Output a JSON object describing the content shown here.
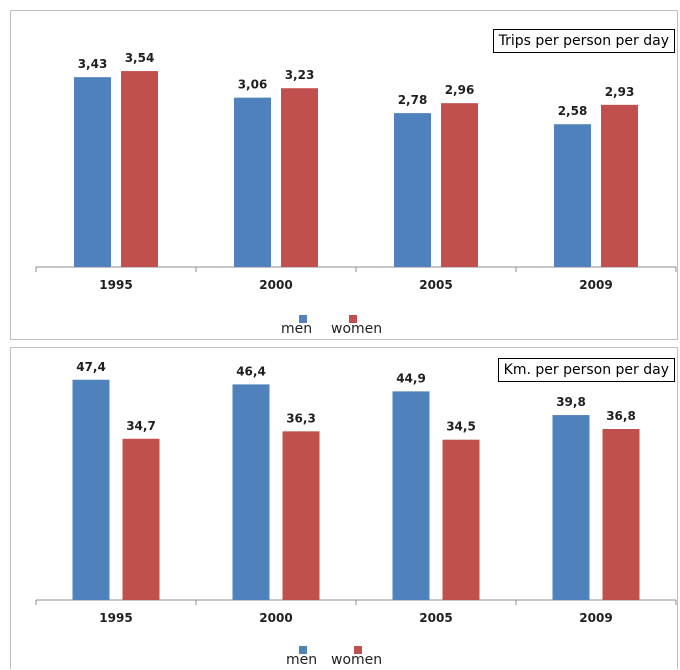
{
  "chart_data": [
    {
      "type": "bar",
      "title": "Trips per person per day",
      "categories": [
        "1995",
        "2000",
        "2005",
        "2009"
      ],
      "series": [
        {
          "name": "men",
          "values": [
            3.43,
            3.06,
            2.78,
            2.58
          ],
          "labels": [
            "3,43",
            "3,06",
            "2,78",
            "2,58"
          ],
          "color": "#4f81bd"
        },
        {
          "name": "women",
          "values": [
            3.54,
            3.23,
            2.96,
            2.93
          ],
          "labels": [
            "3,54",
            "3,23",
            "2,96",
            "2,93"
          ],
          "color": "#c0504d"
        }
      ],
      "ylim": [
        0,
        4.3
      ],
      "grid": false,
      "legend": "bottom"
    },
    {
      "type": "bar",
      "title": "Km. per person per day",
      "categories": [
        "1995",
        "2000",
        "2005",
        "2009"
      ],
      "series": [
        {
          "name": "men",
          "values": [
            47.4,
            46.4,
            44.9,
            39.8
          ],
          "labels": [
            "47,4",
            "46,4",
            "44,9",
            "39,8"
          ],
          "color": "#4f81bd"
        },
        {
          "name": "women",
          "values": [
            34.7,
            36.3,
            34.5,
            36.8
          ],
          "labels": [
            "34,7",
            "36,3",
            "34,5",
            "36,8"
          ],
          "color": "#c0504d"
        }
      ],
      "ylim": [
        0,
        49.5
      ],
      "grid": false,
      "legend": "bottom"
    }
  ]
}
